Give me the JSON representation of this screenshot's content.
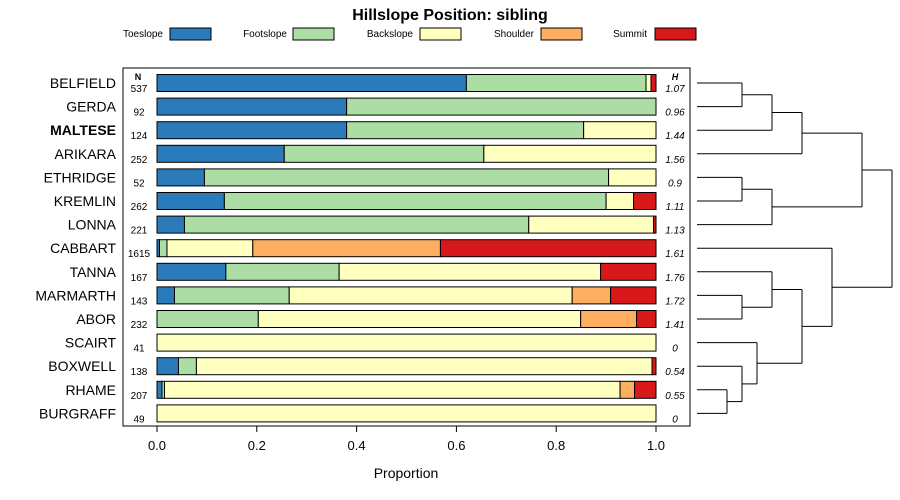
{
  "chart_data": {
    "type": "bar",
    "stacked": true,
    "orientation": "horizontal",
    "title": "Hillslope Position: sibling",
    "xlabel": "Proportion",
    "ylabel": "",
    "xlim": [
      0,
      1
    ],
    "x_ticks": [
      "0.0",
      "0.2",
      "0.4",
      "0.6",
      "0.8",
      "1.0"
    ],
    "n_header": "N",
    "h_header": "H",
    "legend": [
      {
        "name": "Toeslope",
        "color": "#2b7bba"
      },
      {
        "name": "Footslope",
        "color": "#abdda4"
      },
      {
        "name": "Backslope",
        "color": "#ffffbf"
      },
      {
        "name": "Shoulder",
        "color": "#fdae61"
      },
      {
        "name": "Summit",
        "color": "#d7191c"
      }
    ],
    "rows": [
      {
        "name": "BELFIELD",
        "n": "537",
        "h": "1.07",
        "values": [
          0.62,
          0.36,
          0.01,
          0.0,
          0.01
        ]
      },
      {
        "name": "GERDA",
        "n": "92",
        "h": "0.96",
        "values": [
          0.38,
          0.62,
          0.0,
          0.0,
          0.0
        ]
      },
      {
        "name": "MALTESE",
        "n": "124",
        "h": "1.44",
        "values": [
          0.38,
          0.475,
          0.145,
          0.0,
          0.0
        ],
        "bold": true
      },
      {
        "name": "ARIKARA",
        "n": "252",
        "h": "1.56",
        "values": [
          0.255,
          0.4,
          0.345,
          0.0,
          0.0
        ]
      },
      {
        "name": "ETHRIDGE",
        "n": "52",
        "h": "0.9",
        "values": [
          0.095,
          0.81,
          0.095,
          0.0,
          0.0
        ]
      },
      {
        "name": "KREMLIN",
        "n": "262",
        "h": "1.11",
        "values": [
          0.135,
          0.765,
          0.055,
          0.0,
          0.045
        ]
      },
      {
        "name": "LONNA",
        "n": "221",
        "h": "1.13",
        "values": [
          0.055,
          0.69,
          0.25,
          0.0,
          0.005
        ]
      },
      {
        "name": "CABBART",
        "n": "1615",
        "h": "1.61",
        "values": [
          0.005,
          0.015,
          0.172,
          0.376,
          0.432
        ]
      },
      {
        "name": "TANNA",
        "n": "167",
        "h": "1.76",
        "values": [
          0.138,
          0.227,
          0.524,
          0.0,
          0.111
        ]
      },
      {
        "name": "MARMARTH",
        "n": "143",
        "h": "1.72",
        "values": [
          0.035,
          0.23,
          0.567,
          0.077,
          0.091
        ]
      },
      {
        "name": "ABOR",
        "n": "232",
        "h": "1.41",
        "values": [
          0.0,
          0.203,
          0.646,
          0.112,
          0.039
        ]
      },
      {
        "name": "SCAIRT",
        "n": "41",
        "h": "0",
        "values": [
          0.0,
          0.0,
          1.0,
          0.0,
          0.0
        ]
      },
      {
        "name": "BOXWELL",
        "n": "138",
        "h": "0.54",
        "values": [
          0.043,
          0.036,
          0.913,
          0.0,
          0.008
        ]
      },
      {
        "name": "RHAME",
        "n": "207",
        "h": "0.55",
        "values": [
          0.01,
          0.005,
          0.913,
          0.029,
          0.043
        ]
      },
      {
        "name": "BURGRAFF",
        "n": "49",
        "h": "0",
        "values": [
          0.0,
          0.0,
          1.0,
          0.0,
          0.0
        ]
      }
    ],
    "dendrogram": {
      "merges": [
        [
          0,
          1,
          1
        ],
        [
          -1,
          2,
          2
        ],
        [
          -2,
          3,
          3
        ],
        [
          4,
          5,
          1
        ],
        [
          -4,
          6,
          2
        ],
        [
          -3,
          -5,
          5
        ],
        [
          13,
          14,
          0.5
        ],
        [
          12,
          -7,
          1
        ],
        [
          11,
          -8,
          1.5
        ],
        [
          9,
          10,
          1
        ],
        [
          8,
          -10,
          2
        ],
        [
          -11,
          -9,
          3
        ],
        [
          7,
          -12,
          4
        ],
        [
          -6,
          -13,
          6
        ]
      ]
    }
  }
}
